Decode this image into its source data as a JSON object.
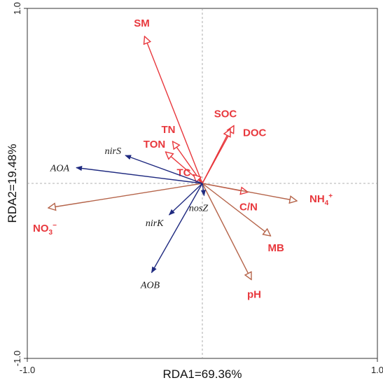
{
  "chart_data": {
    "type": "scatter",
    "subtype": "rda-biplot",
    "title": "",
    "xlabel": "RDA1=69.36%",
    "ylabel": "RDA2=19.48%",
    "xlim": [
      -1.0,
      1.0
    ],
    "ylim": [
      -1.0,
      1.0
    ],
    "xticks": [
      "-1.0",
      "1.0"
    ],
    "yticks": [
      "1.0",
      "-1.0"
    ],
    "grid": false,
    "reference_lines": "dashed lines at x=0 and y=0",
    "colors": {
      "env_line": "#e8383d",
      "env_label": "#e8383d",
      "env_alt_line": "#b5644a",
      "gene_line": "#1f2a80",
      "gene_label": "#1a1a1a"
    },
    "series": [
      {
        "name": "environmental",
        "arrow_style": "open triangle head",
        "vectors": [
          {
            "label": "SM",
            "x": -0.33,
            "y": 0.84,
            "tone": "red"
          },
          {
            "label": "SOC",
            "x": 0.18,
            "y": 0.33,
            "tone": "red"
          },
          {
            "label": "DOC",
            "x": 0.16,
            "y": 0.31,
            "tone": "red"
          },
          {
            "label": "TN",
            "x": -0.17,
            "y": 0.24,
            "tone": "red"
          },
          {
            "label": "TON",
            "x": -0.21,
            "y": 0.18,
            "tone": "red"
          },
          {
            "label": "TC",
            "x": -0.05,
            "y": 0.05,
            "tone": "red"
          },
          {
            "label": "C/N",
            "x": 0.26,
            "y": -0.05,
            "tone": "red"
          },
          {
            "label": "NH4+",
            "x": 0.54,
            "y": -0.1,
            "tone": "brown"
          },
          {
            "label": "MB",
            "x": 0.39,
            "y": -0.3,
            "tone": "brown"
          },
          {
            "label": "pH",
            "x": 0.28,
            "y": -0.55,
            "tone": "brown"
          },
          {
            "label": "NO3−",
            "x": -0.88,
            "y": -0.14,
            "tone": "brown"
          }
        ]
      },
      {
        "name": "genes",
        "arrow_style": "filled triangle head",
        "vectors": [
          {
            "label": "nirS",
            "x": -0.44,
            "y": 0.16
          },
          {
            "label": "AOA",
            "x": -0.72,
            "y": 0.09
          },
          {
            "label": "nirK",
            "x": -0.19,
            "y": -0.18
          },
          {
            "label": "AOB",
            "x": -0.29,
            "y": -0.51
          },
          {
            "label": "nosZ",
            "x": 0.01,
            "y": -0.07
          }
        ]
      }
    ]
  }
}
